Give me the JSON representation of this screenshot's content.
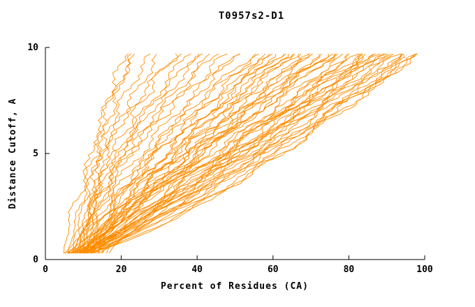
{
  "chart_data": {
    "type": "line",
    "title": "T0957s2-D1",
    "xlabel": "Percent of Residues (CA)",
    "ylabel": "Distance Cutoff, A",
    "xlim": [
      0,
      100
    ],
    "ylim": [
      0,
      10
    ],
    "x_ticks": [
      0,
      20,
      40,
      60,
      80,
      100
    ],
    "y_ticks": [
      0,
      5,
      10
    ],
    "grid": false,
    "legend": "none",
    "line_color": "#FF8C00",
    "axis_color": "#000000",
    "y_start": 0.3,
    "y_end": 9.7,
    "curves": [
      [
        12,
        21,
        2.6,
        0.8,
        4,
        1
      ],
      [
        13,
        23,
        2.4,
        0.9,
        3.5,
        2
      ],
      [
        11,
        30,
        1.8,
        1,
        3,
        0.5
      ],
      [
        10,
        34,
        1.6,
        1.2,
        4,
        1.5
      ],
      [
        9,
        40,
        1.5,
        1,
        2.5,
        2.2
      ],
      [
        8,
        45,
        1.4,
        1.3,
        3,
        3
      ],
      [
        12,
        50,
        1.3,
        1,
        4,
        0.2
      ],
      [
        7,
        55,
        1.2,
        1.5,
        2.8,
        1.1
      ],
      [
        10,
        60,
        1.1,
        1.2,
        3.2,
        2.8
      ],
      [
        6,
        62,
        1.0,
        1.4,
        3.6,
        4
      ],
      [
        11,
        65,
        1.0,
        1.1,
        2.2,
        5
      ],
      [
        9,
        68,
        0.95,
        1.3,
        4.2,
        0.7
      ],
      [
        8,
        70,
        0.9,
        1.5,
        3,
        1.9
      ],
      [
        12,
        72,
        1.2,
        1.2,
        2.6,
        2.5
      ],
      [
        10,
        74,
        1.1,
        1.4,
        3.8,
        3.3
      ],
      [
        7,
        76,
        1.0,
        1.2,
        2.4,
        4.4
      ],
      [
        9,
        78,
        0.95,
        1.5,
        3.1,
        5.5
      ],
      [
        11,
        80,
        0.9,
        1.3,
        2.9,
        0.3
      ],
      [
        8,
        82,
        0.85,
        1.6,
        3.4,
        1.2
      ],
      [
        10,
        84,
        0.9,
        1.2,
        4.1,
        2
      ],
      [
        6,
        85,
        0.8,
        1.5,
        2.7,
        3.1
      ],
      [
        9,
        86,
        0.85,
        1.3,
        3.3,
        4.2
      ],
      [
        12,
        88,
        0.9,
        1.6,
        2.5,
        5.3
      ],
      [
        7,
        90,
        0.8,
        1.4,
        3.7,
        0.9
      ],
      [
        10,
        92,
        0.85,
        1.2,
        2.3,
        1.7
      ],
      [
        8,
        94,
        0.8,
        1.5,
        3.9,
        2.6
      ],
      [
        11,
        95,
        0.75,
        1.3,
        2.8,
        3.8
      ],
      [
        9,
        96,
        0.8,
        1.6,
        3.2,
        4.9
      ],
      [
        6,
        97,
        0.7,
        1.4,
        2.6,
        0.4
      ],
      [
        10,
        98,
        0.75,
        1.2,
        3.5,
        1.3
      ],
      [
        13,
        60,
        1.5,
        1.1,
        3,
        2.1
      ],
      [
        14,
        66,
        1.4,
        1.3,
        2.4,
        3.2
      ],
      [
        12,
        76,
        1.3,
        1.5,
        3.6,
        4.3
      ],
      [
        11,
        86,
        1.2,
        1.2,
        2.9,
        5.4
      ],
      [
        13,
        92,
        1.1,
        1.4,
        3.3,
        0.6
      ],
      [
        5,
        58,
        1.0,
        1.3,
        2.7,
        1.4
      ],
      [
        6,
        64,
        0.95,
        1.5,
        3.8,
        2.3
      ],
      [
        7,
        72,
        0.9,
        1.2,
        2.5,
        3.5
      ],
      [
        5,
        80,
        0.85,
        1.4,
        3.1,
        4.6
      ],
      [
        6,
        88,
        0.8,
        1.6,
        2.8,
        5.7
      ],
      [
        14,
        55,
        1.6,
        1.1,
        3.4,
        0.8
      ],
      [
        15,
        62,
        1.5,
        1.3,
        2.6,
        1.6
      ],
      [
        13,
        70,
        1.35,
        1.5,
        3.7,
        2.4
      ],
      [
        14,
        78,
        1.25,
        1.2,
        2.3,
        3.6
      ],
      [
        15,
        85,
        1.15,
        1.4,
        3.2,
        4.7
      ],
      [
        8,
        50,
        1.3,
        1.1,
        2.9,
        5.8
      ],
      [
        9,
        57,
        1.25,
        1.3,
        3.5,
        0.1
      ],
      [
        10,
        63,
        1.15,
        1.5,
        2.7,
        1.0
      ],
      [
        8,
        69,
        1.05,
        1.2,
        3.3,
        1.8
      ],
      [
        9,
        75,
        1.0,
        1.4,
        2.4,
        2.7
      ],
      [
        10,
        81,
        0.95,
        1.6,
        3.6,
        3.9
      ],
      [
        8,
        87,
        0.9,
        1.3,
        2.8,
        5.0
      ],
      [
        9,
        93,
        0.85,
        1.5,
        3.1,
        0.2
      ],
      [
        16,
        90,
        1.3,
        1.2,
        2.5,
        1.5
      ],
      [
        17,
        96,
        1.2,
        1.4,
        3.4,
        2.9
      ],
      [
        5,
        35,
        1.7,
        1.0,
        3,
        4.1
      ],
      [
        6,
        42,
        1.55,
        1.2,
        2.6,
        5.2
      ],
      [
        7,
        48,
        1.45,
        1.4,
        3.8,
        0.5
      ],
      [
        12,
        98,
        0.9,
        1.3,
        2.2,
        1.1
      ],
      [
        14,
        99,
        0.95,
        1.5,
        3.0,
        2.0
      ],
      [
        11,
        44,
        1.6,
        1.1,
        3.5,
        3.4
      ],
      [
        13,
        38,
        1.9,
        1.0,
        2.8,
        4.5
      ],
      [
        10,
        28,
        2.1,
        0.9,
        3.2,
        5.6
      ],
      [
        9,
        24,
        2.3,
        0.8,
        2.4,
        0.6
      ]
    ]
  }
}
